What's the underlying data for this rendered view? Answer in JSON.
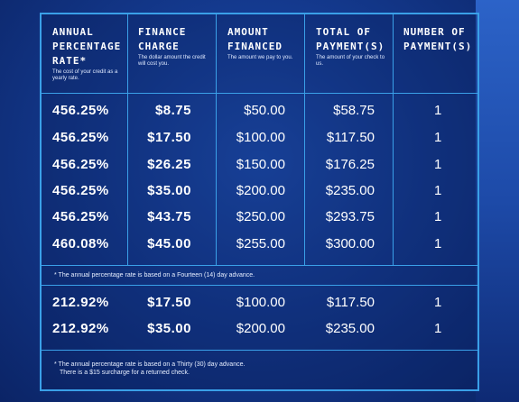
{
  "headers": [
    {
      "title": "ANNUAL\nPERCENTAGE\nRATE*",
      "sub": "The cost of your credit as a yearly rate."
    },
    {
      "title": "FINANCE\nCHARGE",
      "sub": "The dollar amount the credit will cost you."
    },
    {
      "title": "AMOUNT\nFINANCED",
      "sub": "The amount we pay to you."
    },
    {
      "title": "TOTAL OF\nPAYMENT(S)",
      "sub": "The amount of your check to us."
    },
    {
      "title": "NUMBER OF\nPAYMENT(S)",
      "sub": ""
    }
  ],
  "group1": [
    {
      "apr": "456.25%",
      "charge": "$8.75",
      "amount": "$50.00",
      "total": "$58.75",
      "count": "1"
    },
    {
      "apr": "456.25%",
      "charge": "$17.50",
      "amount": "$100.00",
      "total": "$117.50",
      "count": "1"
    },
    {
      "apr": "456.25%",
      "charge": "$26.25",
      "amount": "$150.00",
      "total": "$176.25",
      "count": "1"
    },
    {
      "apr": "456.25%",
      "charge": "$35.00",
      "amount": "$200.00",
      "total": "$235.00",
      "count": "1"
    },
    {
      "apr": "456.25%",
      "charge": "$43.75",
      "amount": "$250.00",
      "total": "$293.75",
      "count": "1"
    },
    {
      "apr": "460.08%",
      "charge": "$45.00",
      "amount": "$255.00",
      "total": "$300.00",
      "count": "1"
    }
  ],
  "note1": "* The annual percentage rate is based on a Fourteen (14) day advance.",
  "group2": [
    {
      "apr": "212.92%",
      "charge": "$17.50",
      "amount": "$100.00",
      "total": "$117.50",
      "count": "1"
    },
    {
      "apr": "212.92%",
      "charge": "$35.00",
      "amount": "$200.00",
      "total": "$235.00",
      "count": "1"
    }
  ],
  "note2_line1": "* The annual percentage rate is based on a Thirty (30) day advance.",
  "note2_line2": "There is a $15 surcharge for a returned check."
}
